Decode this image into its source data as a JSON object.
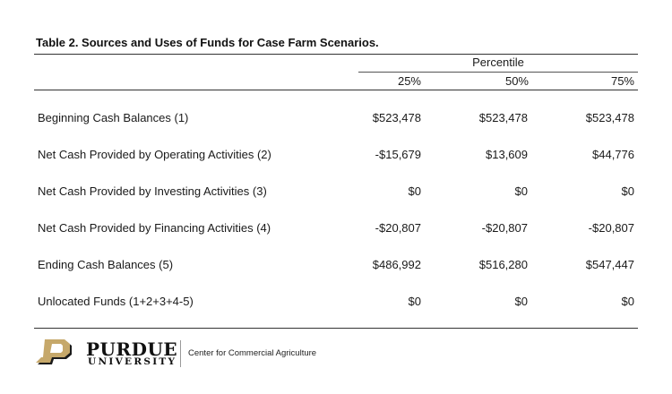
{
  "table": {
    "title": "Table 2.  Sources and Uses of Funds for Case Farm Scenarios.",
    "group_header": "Percentile",
    "columns": [
      "25%",
      "50%",
      "75%"
    ],
    "rows": [
      {
        "label": "Beginning Cash Balances (1)",
        "values": [
          "$523,478",
          "$523,478",
          "$523,478"
        ]
      },
      {
        "label": "Net Cash Provided by Operating Activities (2)",
        "values": [
          "-$15,679",
          "$13,609",
          "$44,776"
        ]
      },
      {
        "label": "Net Cash Provided by Investing Activities (3)",
        "values": [
          "$0",
          "$0",
          "$0"
        ]
      },
      {
        "label": "Net Cash Provided by Financing Activities (4)",
        "values": [
          "-$20,807",
          "-$20,807",
          "-$20,807"
        ]
      },
      {
        "label": "Ending Cash Balances (5)",
        "values": [
          "$486,992",
          "$516,280",
          "$547,447"
        ]
      },
      {
        "label": "Unlocated Funds (1+2+3+4-5)",
        "values": [
          "$0",
          "$0",
          "$0"
        ]
      }
    ]
  },
  "footer": {
    "brand_name": "PURDUE",
    "brand_sub": "UNIVERSITY",
    "center_name": "Center for Commercial Agriculture",
    "logo_icon": "purdue-p-logo-icon",
    "colors": {
      "logo_gold": "#c6a86a",
      "logo_dark": "#1b1b1b"
    }
  }
}
